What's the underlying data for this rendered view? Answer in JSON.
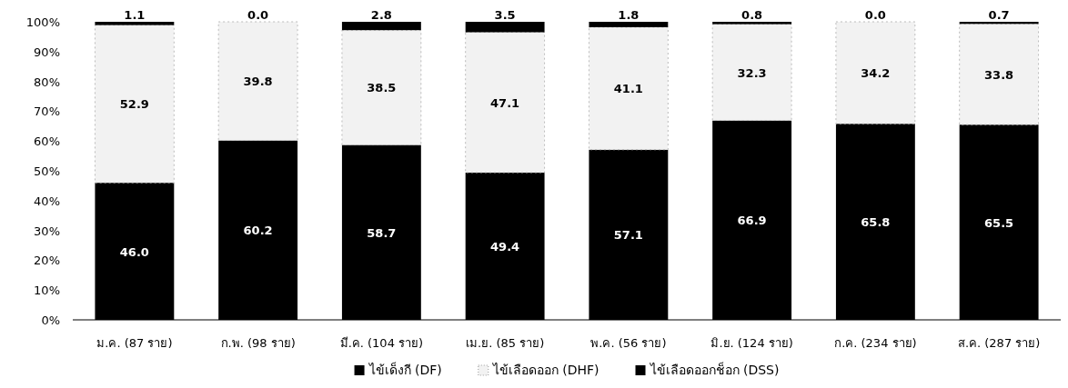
{
  "chart_data": {
    "type": "bar",
    "stacked": true,
    "legend": "bottom",
    "grid": false,
    "categories": [
      "ม.ค. (87 ราย)",
      "ก.พ. (98 ราย)",
      "มี.ค. (104 ราย)",
      "เม.ย. (85 ราย)",
      "พ.ค. (56 ราย)",
      "มิ.ย. (124 ราย)",
      "ก.ค. (234 ราย)",
      "ส.ค. (287 ราย)"
    ],
    "ylim": [
      0,
      100
    ],
    "yticks": [
      {
        "value": 0,
        "label": "0%"
      },
      {
        "value": 10,
        "label": "10%"
      },
      {
        "value": 20,
        "label": "20%"
      },
      {
        "value": 30,
        "label": "30%"
      },
      {
        "value": 40,
        "label": "40%"
      },
      {
        "value": 50,
        "label": "50%"
      },
      {
        "value": 60,
        "label": "60%"
      },
      {
        "value": 70,
        "label": "70%"
      },
      {
        "value": 80,
        "label": "80%"
      },
      {
        "value": 90,
        "label": "90%"
      },
      {
        "value": 100,
        "label": "100%"
      }
    ],
    "series": [
      {
        "name": "ไข้เด็งกี (DF)",
        "color": "#000000",
        "values": [
          46.0,
          60.2,
          58.7,
          49.4,
          57.1,
          66.9,
          65.8,
          65.5
        ],
        "value_labels": [
          "46.0",
          "60.2",
          "58.7",
          "49.4",
          "57.1",
          "66.9",
          "65.8",
          "65.5"
        ]
      },
      {
        "name": "ไข้เลือดออก (DHF)",
        "color": "#f2f2f2",
        "values": [
          52.9,
          39.8,
          38.5,
          47.1,
          41.1,
          32.3,
          34.2,
          33.8
        ],
        "value_labels": [
          "52.9",
          "39.8",
          "38.5",
          "47.1",
          "41.1",
          "32.3",
          "34.2",
          "33.8"
        ]
      },
      {
        "name": "ไข้เลือดออกช็อก (DSS)",
        "color": "#000000",
        "values": [
          1.1,
          0.0,
          2.8,
          3.5,
          1.8,
          0.8,
          0.0,
          0.7
        ],
        "value_labels": [
          "1.1",
          "0.0",
          "2.8",
          "3.5",
          "1.8",
          "0.8",
          "0.0",
          "0.7"
        ]
      }
    ]
  }
}
